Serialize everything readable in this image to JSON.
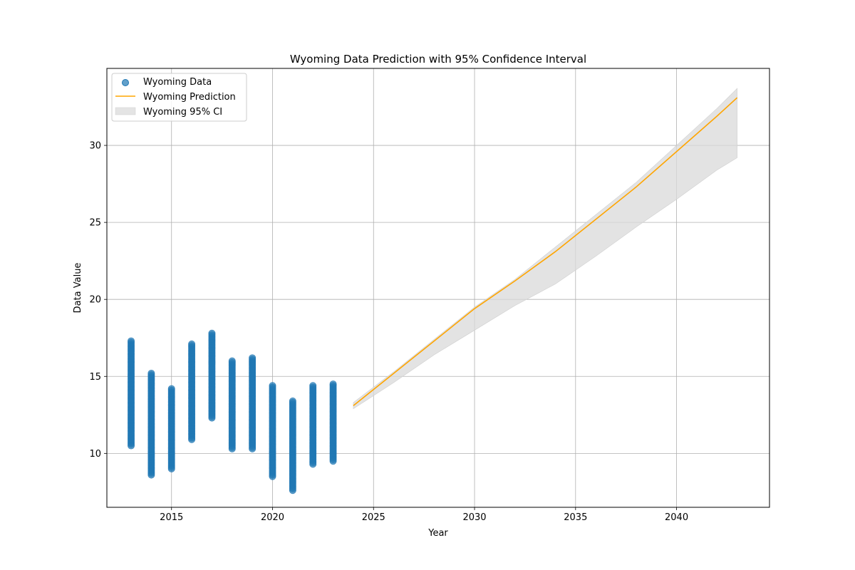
{
  "chart_data": {
    "type": "scatter",
    "title": "Wyoming Data Prediction with 95% Confidence Interval",
    "xlabel": "Year",
    "ylabel": "Data Value",
    "xlim": [
      2011.8,
      2044.6
    ],
    "ylim": [
      6.5,
      35.0
    ],
    "xticks": [
      2015,
      2020,
      2025,
      2030,
      2035,
      2040
    ],
    "yticks": [
      10,
      15,
      20,
      25,
      30
    ],
    "grid": true,
    "legend_position": "upper-left",
    "colors": {
      "data": "#1f77b4",
      "prediction": "#ffa500",
      "ci": "#d9d9d9",
      "grid": "#b0b0b0"
    },
    "series": [
      {
        "name": "Wyoming Data",
        "kind": "scatter",
        "strips": [
          {
            "x": 2013,
            "min": 10.5,
            "max": 17.3,
            "outliers": []
          },
          {
            "x": 2014,
            "min": 8.6,
            "max": 15.2,
            "outliers": []
          },
          {
            "x": 2015,
            "min": 9.0,
            "max": 14.2,
            "outliers": []
          },
          {
            "x": 2016,
            "min": 10.9,
            "max": 17.1,
            "outliers": []
          },
          {
            "x": 2017,
            "min": 12.3,
            "max": 17.8,
            "outliers": []
          },
          {
            "x": 2018,
            "min": 10.3,
            "max": 16.0,
            "outliers": []
          },
          {
            "x": 2019,
            "min": 10.3,
            "max": 16.2,
            "outliers": []
          },
          {
            "x": 2020,
            "min": 8.5,
            "max": 14.4,
            "outliers": []
          },
          {
            "x": 2021,
            "min": 7.6,
            "max": 13.4,
            "outliers": []
          },
          {
            "x": 2022,
            "min": 9.3,
            "max": 14.4,
            "outliers": []
          },
          {
            "x": 2023,
            "min": 9.5,
            "max": 14.5,
            "outliers": []
          }
        ]
      },
      {
        "name": "Wyoming Prediction",
        "kind": "line",
        "x": [
          2024,
          2026,
          2028,
          2030,
          2032,
          2034,
          2036,
          2038,
          2040,
          2042,
          2043
        ],
        "y": [
          13.1,
          15.2,
          17.3,
          19.4,
          21.2,
          23.1,
          25.2,
          27.3,
          29.6,
          31.9,
          33.1
        ]
      },
      {
        "name": "Wyoming 95% CI",
        "kind": "band",
        "x": [
          2024,
          2026,
          2028,
          2030,
          2032,
          2034,
          2036,
          2038,
          2040,
          2042,
          2043
        ],
        "lower": [
          12.9,
          14.6,
          16.4,
          18.0,
          19.6,
          21.0,
          22.8,
          24.7,
          26.5,
          28.4,
          29.2
        ],
        "upper": [
          13.3,
          15.3,
          17.4,
          19.5,
          21.3,
          23.4,
          25.5,
          27.6,
          30.0,
          32.4,
          33.7
        ]
      }
    ]
  }
}
